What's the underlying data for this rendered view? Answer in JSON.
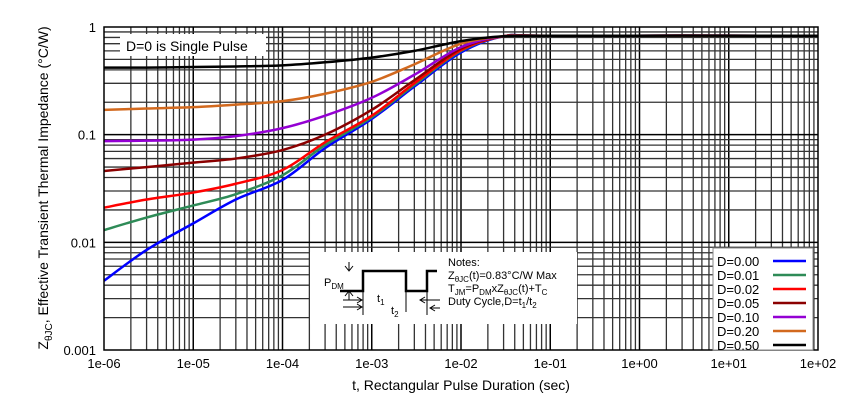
{
  "chart_data": {
    "type": "line",
    "xlabel": "t, Rectangular Pulse Duration (sec)",
    "ylabel": {
      "main": "Z",
      "sub": "θJC",
      "rest": ", Effective Transient Thermal Impedance (°C/W)"
    },
    "xscale": "log",
    "yscale": "log",
    "xlim": [
      1e-06,
      100
    ],
    "ylim": [
      0.001,
      1
    ],
    "grid": true,
    "xticks": [
      "1e-06",
      "1e-05",
      "1e-04",
      "1e-03",
      "1e-02",
      "1e-01",
      "1e+00",
      "1e+01",
      "1e+02"
    ],
    "yticks": [
      "0.001",
      "0.01",
      "0.1",
      "1"
    ],
    "legend_position": "bottom-right",
    "annotation": "D=0 is Single Pulse",
    "notes": {
      "title": "Notes:",
      "line1": {
        "a": "Z",
        "b": "θJC",
        "c": "(t)=0.83°C/W Max"
      },
      "line2": {
        "a": "T",
        "b": "JM",
        "c": "=P",
        "d": "DM",
        "e": "xZ",
        "f": "θJC",
        "g": "(t)+T",
        "h": "C"
      },
      "line3": {
        "a": "Duty Cycle,D=t",
        "b": "1",
        "c": "/t",
        "d": "2"
      },
      "pdm": {
        "a": "P",
        "b": "DM"
      },
      "t1": {
        "a": "t",
        "b": "1"
      },
      "t2": {
        "a": "t",
        "b": "2"
      }
    },
    "x": [
      1e-06,
      3e-06,
      1e-05,
      3e-05,
      0.0001,
      0.0003,
      0.001,
      0.003,
      0.01,
      0.03,
      0.1,
      100
    ],
    "series": [
      {
        "name": "D=0.00",
        "color": "#0000ff",
        "values": [
          0.0044,
          0.0085,
          0.015,
          0.025,
          0.038,
          0.075,
          0.14,
          0.28,
          0.58,
          0.82,
          0.83,
          0.83
        ]
      },
      {
        "name": "D=0.01",
        "color": "#2e8b57",
        "values": [
          0.013,
          0.017,
          0.022,
          0.028,
          0.042,
          0.08,
          0.145,
          0.29,
          0.6,
          0.82,
          0.83,
          0.83
        ]
      },
      {
        "name": "D=0.02",
        "color": "#ff0000",
        "values": [
          0.021,
          0.025,
          0.029,
          0.035,
          0.047,
          0.085,
          0.15,
          0.3,
          0.61,
          0.82,
          0.83,
          0.83
        ]
      },
      {
        "name": "D=0.05",
        "color": "#8b0000",
        "values": [
          0.046,
          0.05,
          0.055,
          0.06,
          0.072,
          0.1,
          0.17,
          0.32,
          0.63,
          0.82,
          0.83,
          0.83
        ]
      },
      {
        "name": "D=0.10",
        "color": "#9400d3",
        "values": [
          0.087,
          0.088,
          0.09,
          0.097,
          0.115,
          0.15,
          0.22,
          0.36,
          0.65,
          0.82,
          0.83,
          0.83
        ]
      },
      {
        "name": "D=0.20",
        "color": "#d2691e",
        "values": [
          0.17,
          0.175,
          0.18,
          0.19,
          0.205,
          0.24,
          0.31,
          0.45,
          0.7,
          0.82,
          0.83,
          0.83
        ]
      },
      {
        "name": "D=0.50",
        "color": "#000000",
        "values": [
          0.42,
          0.42,
          0.425,
          0.43,
          0.44,
          0.47,
          0.52,
          0.6,
          0.74,
          0.82,
          0.83,
          0.83
        ]
      }
    ]
  }
}
